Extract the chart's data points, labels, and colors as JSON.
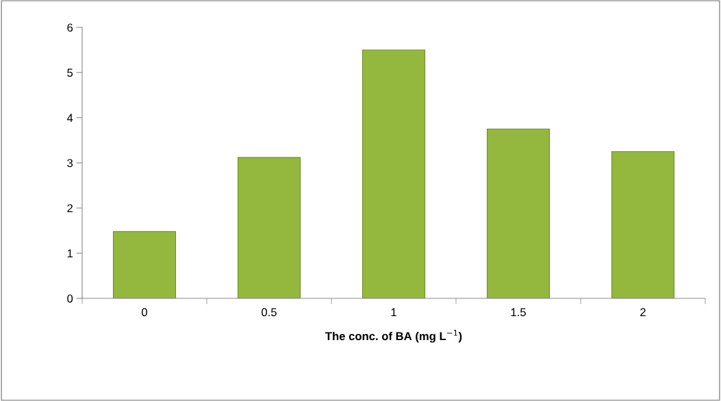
{
  "chart_data": {
    "type": "bar",
    "xlabel": "The conc. of BA (mg L$^{−1}$)",
    "categories": [
      "0",
      "0.5",
      "1",
      "1.5",
      "2"
    ],
    "values": [
      1.48,
      3.12,
      5.5,
      3.75,
      3.25
    ],
    "color": "#94b83e",
    "ylim": [
      0,
      6
    ],
    "yticks": [
      0,
      1,
      2,
      3,
      4,
      5,
      6
    ],
    "grid": false,
    "legend": false
  }
}
